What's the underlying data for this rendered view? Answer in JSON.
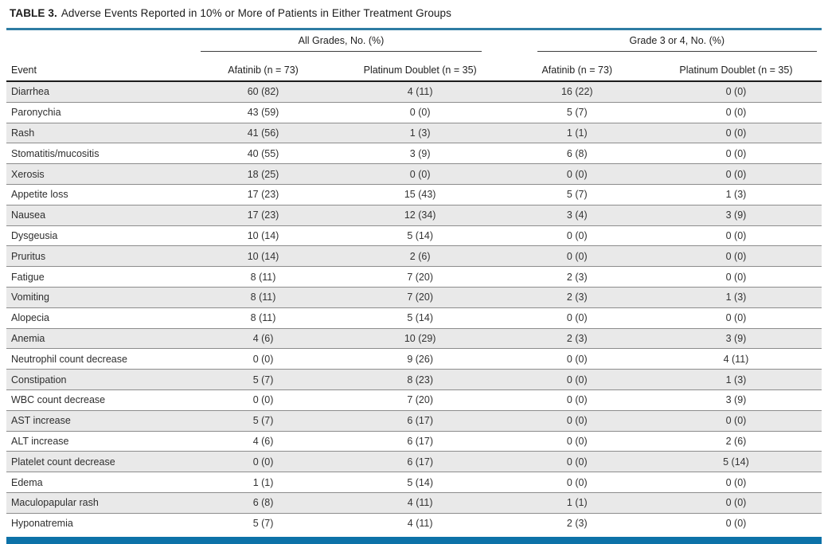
{
  "title": {
    "label": "TABLE 3.",
    "text": "Adverse Events Reported in 10% or More of Patients in Either Treatment Groups"
  },
  "colors": {
    "accent_teal": "#2e7ca3",
    "footer_blue": "#0d72a8",
    "row_shade": "#e9e9e9"
  },
  "chart_data": {
    "type": "table",
    "title": "TABLE 3. Adverse Events Reported in 10% or More of Patients in Either Treatment Groups",
    "group_headers": [
      {
        "label": "All Grades, No. (%)",
        "spans_columns": [
          1,
          2
        ]
      },
      {
        "label": "Grade 3 or 4, No. (%)",
        "spans_columns": [
          3,
          4
        ]
      }
    ],
    "columns": [
      "Event",
      "Afatinib (n = 73)",
      "Platinum Doublet (n = 35)",
      "Afatinib (n = 73)",
      "Platinum Doublet (n = 35)"
    ],
    "rows": [
      [
        "Diarrhea",
        "60 (82)",
        "4 (11)",
        "16 (22)",
        "0 (0)"
      ],
      [
        "Paronychia",
        "43 (59)",
        "0 (0)",
        "5 (7)",
        "0 (0)"
      ],
      [
        "Rash",
        "41 (56)",
        "1 (3)",
        "1 (1)",
        "0 (0)"
      ],
      [
        "Stomatitis/mucositis",
        "40 (55)",
        "3 (9)",
        "6 (8)",
        "0 (0)"
      ],
      [
        "Xerosis",
        "18 (25)",
        "0 (0)",
        "0 (0)",
        "0 (0)"
      ],
      [
        "Appetite loss",
        "17 (23)",
        "15 (43)",
        "5 (7)",
        "1 (3)"
      ],
      [
        "Nausea",
        "17 (23)",
        "12 (34)",
        "3 (4)",
        "3 (9)"
      ],
      [
        "Dysgeusia",
        "10 (14)",
        "5 (14)",
        "0 (0)",
        "0 (0)"
      ],
      [
        "Pruritus",
        "10 (14)",
        "2 (6)",
        "0 (0)",
        "0 (0)"
      ],
      [
        "Fatigue",
        "8 (11)",
        "7 (20)",
        "2 (3)",
        "0 (0)"
      ],
      [
        "Vomiting",
        "8 (11)",
        "7 (20)",
        "2 (3)",
        "1 (3)"
      ],
      [
        "Alopecia",
        "8 (11)",
        "5 (14)",
        "0 (0)",
        "0 (0)"
      ],
      [
        "Anemia",
        "4 (6)",
        "10 (29)",
        "2 (3)",
        "3 (9)"
      ],
      [
        "Neutrophil count decrease",
        "0 (0)",
        "9 (26)",
        "0 (0)",
        "4 (11)"
      ],
      [
        "Constipation",
        "5 (7)",
        "8 (23)",
        "0 (0)",
        "1 (3)"
      ],
      [
        "WBC count decrease",
        "0 (0)",
        "7 (20)",
        "0 (0)",
        "3 (9)"
      ],
      [
        "AST increase",
        "5 (7)",
        "6 (17)",
        "0 (0)",
        "0 (0)"
      ],
      [
        "ALT increase",
        "4 (6)",
        "6 (17)",
        "0 (0)",
        "2 (6)"
      ],
      [
        "Platelet count decrease",
        "0 (0)",
        "6 (17)",
        "0 (0)",
        "5 (14)"
      ],
      [
        "Edema",
        "1 (1)",
        "5 (14)",
        "0 (0)",
        "0 (0)"
      ],
      [
        "Maculopapular rash",
        "6 (8)",
        "4 (11)",
        "1 (1)",
        "0 (0)"
      ],
      [
        "Hyponatremia",
        "5 (7)",
        "4 (11)",
        "2 (3)",
        "0 (0)"
      ]
    ]
  }
}
